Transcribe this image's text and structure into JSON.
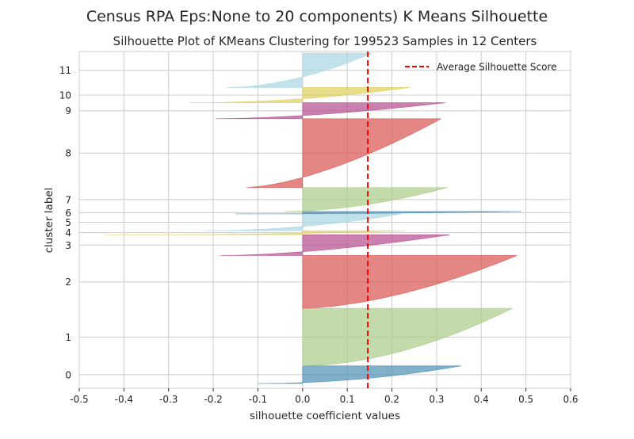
{
  "chart_data": {
    "type": "silhouette",
    "suptitle": "Census RPA Eps:None to 20 components) K Means Silhouette",
    "title": "Silhouette Plot of KMeans Clustering for 199523 Samples in 12 Centers",
    "xlabel": "silhouette coefficient values",
    "ylabel": "cluster label",
    "xlim": [
      -0.5,
      0.6
    ],
    "xticks": [
      -0.5,
      -0.4,
      -0.3,
      -0.2,
      -0.1,
      0.0,
      0.1,
      0.2,
      0.3,
      0.4,
      0.5,
      0.6
    ],
    "grid": true,
    "legend": {
      "label": "Average Silhouette Score",
      "placement": "top-right"
    },
    "average_silhouette_score": 0.146,
    "clusters": [
      {
        "label": "0",
        "color": "#4C8FB3",
        "lo": 3000,
        "hi": 14000,
        "min": -0.1,
        "max": 0.355,
        "q": 0.5,
        "plateau": 0.0
      },
      {
        "label": "1",
        "color": "#A9CB88",
        "lo": 14000,
        "hi": 50000,
        "min": 0.0,
        "max": 0.47,
        "q": 0.55,
        "plateau": 0.2
      },
      {
        "label": "2",
        "color": "#D9534F",
        "lo": 50000,
        "hi": 83000,
        "min": 0.0,
        "max": 0.48,
        "q": 0.6,
        "plateau": 0.15
      },
      {
        "label": "3",
        "color": "#B54C8F",
        "lo": 83000,
        "hi": 96000,
        "min": -0.185,
        "max": 0.33,
        "q": 0.6,
        "plateau": 0.0
      },
      {
        "label": "4",
        "color": "#E0D05A",
        "lo": 96000,
        "hi": 98500,
        "min": -0.44,
        "max": 0.23,
        "q": 0.4,
        "plateau": 0.0
      },
      {
        "label": "5",
        "color": "#A8D6E3",
        "lo": 98500,
        "hi": 109000,
        "min": -0.22,
        "max": 0.22,
        "q": 0.5,
        "plateau": 0.0
      },
      {
        "label": "6",
        "color": "#4C8FB3",
        "lo": 109000,
        "hi": 110500,
        "min": -0.15,
        "max": 0.49,
        "q": 0.5,
        "plateau": 0.0
      },
      {
        "label": "7",
        "color": "#A9CB88",
        "lo": 110500,
        "hi": 125500,
        "min": -0.04,
        "max": 0.325,
        "q": 0.55,
        "plateau": 0.0
      },
      {
        "label": "8",
        "color": "#D9534F",
        "lo": 125500,
        "hi": 168500,
        "min": -0.125,
        "max": 0.31,
        "q": 0.65,
        "plateau": 0.05
      },
      {
        "label": "9",
        "color": "#B54C8F",
        "lo": 168500,
        "hi": 178500,
        "min": -0.195,
        "max": 0.32,
        "q": 0.6,
        "plateau": 0.0
      },
      {
        "label": "10",
        "color": "#E0D05A",
        "lo": 178500,
        "hi": 188000,
        "min": -0.25,
        "max": 0.24,
        "q": 0.5,
        "plateau": 0.0
      },
      {
        "label": "11",
        "color": "#A8D6E3",
        "lo": 188000,
        "hi": 209500,
        "min": -0.17,
        "max": 0.155,
        "q": 0.55,
        "plateau": 0.0
      }
    ],
    "ylim": [
      0,
      210500
    ]
  }
}
